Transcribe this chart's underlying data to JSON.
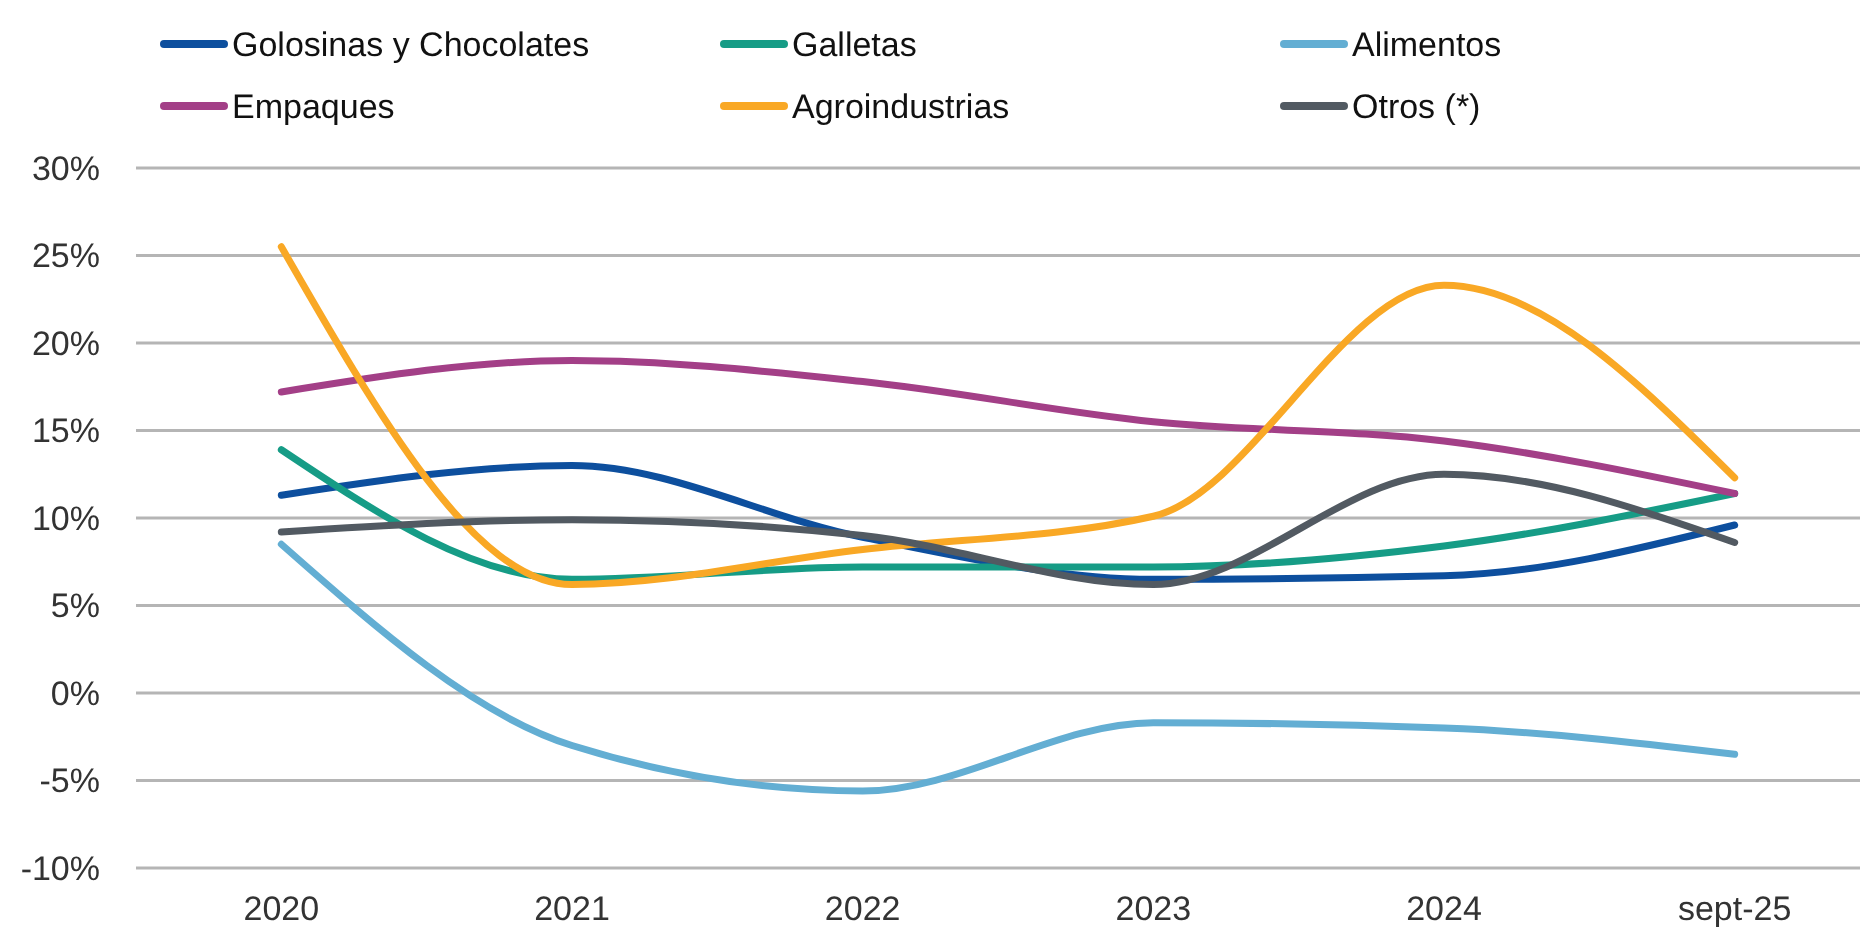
{
  "chart_data": {
    "type": "line",
    "categories": [
      "2020",
      "2021",
      "2022",
      "2023",
      "2024",
      "sept-25"
    ],
    "series": [
      {
        "name": "Golosinas y Chocolates",
        "color": "#0d4f9e",
        "values": [
          11.3,
          13.0,
          8.9,
          6.5,
          6.7,
          9.6
        ]
      },
      {
        "name": "Galletas",
        "color": "#169c86",
        "values": [
          13.9,
          6.5,
          7.2,
          7.2,
          8.4,
          11.4
        ]
      },
      {
        "name": "Alimentos",
        "color": "#63aed3",
        "values": [
          8.5,
          -3.0,
          -5.6,
          -1.7,
          -2.0,
          -3.5
        ]
      },
      {
        "name": "Empaques",
        "color": "#a33f87",
        "values": [
          17.2,
          19.0,
          17.8,
          15.5,
          14.4,
          11.4
        ]
      },
      {
        "name": "Agroindustrias",
        "color": "#f9a825",
        "values": [
          25.5,
          6.2,
          8.2,
          10.1,
          23.3,
          12.3
        ]
      },
      {
        "name": "Otros (*)",
        "color": "#525a62",
        "values": [
          9.2,
          9.9,
          9.0,
          6.2,
          12.5,
          8.6
        ]
      }
    ],
    "ylim": [
      -10,
      30
    ],
    "yticks": [
      {
        "value": -10,
        "label": "-10%"
      },
      {
        "value": -5,
        "label": "-5%"
      },
      {
        "value": 0,
        "label": "0%"
      },
      {
        "value": 5,
        "label": "5%"
      },
      {
        "value": 10,
        "label": "10%"
      },
      {
        "value": 15,
        "label": "15%"
      },
      {
        "value": 20,
        "label": "20%"
      },
      {
        "value": 25,
        "label": "25%"
      },
      {
        "value": 30,
        "label": "30%"
      }
    ],
    "grid": "y",
    "legend": "top",
    "marker": "none",
    "line_style": "solid"
  }
}
